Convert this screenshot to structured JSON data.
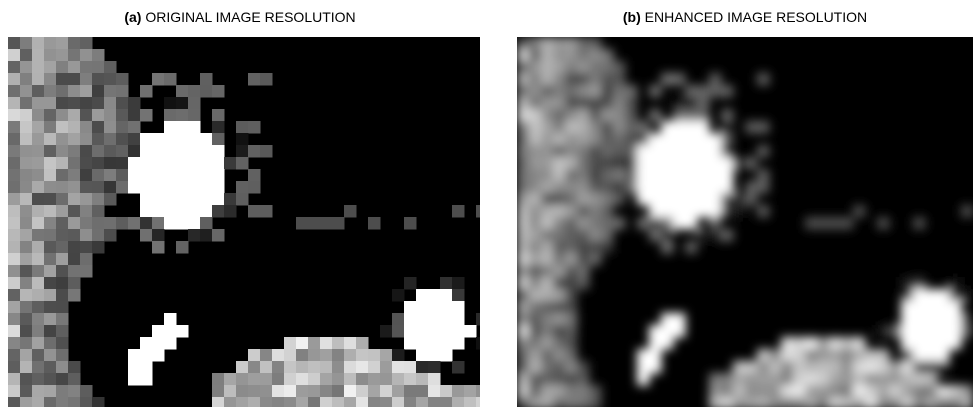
{
  "panels": [
    {
      "label": "(a)",
      "title": "ORIGINAL IMAGE RESOLUTION"
    },
    {
      "label": "(b)",
      "title": "ENHANCED IMAGE RESOLUTION"
    }
  ]
}
